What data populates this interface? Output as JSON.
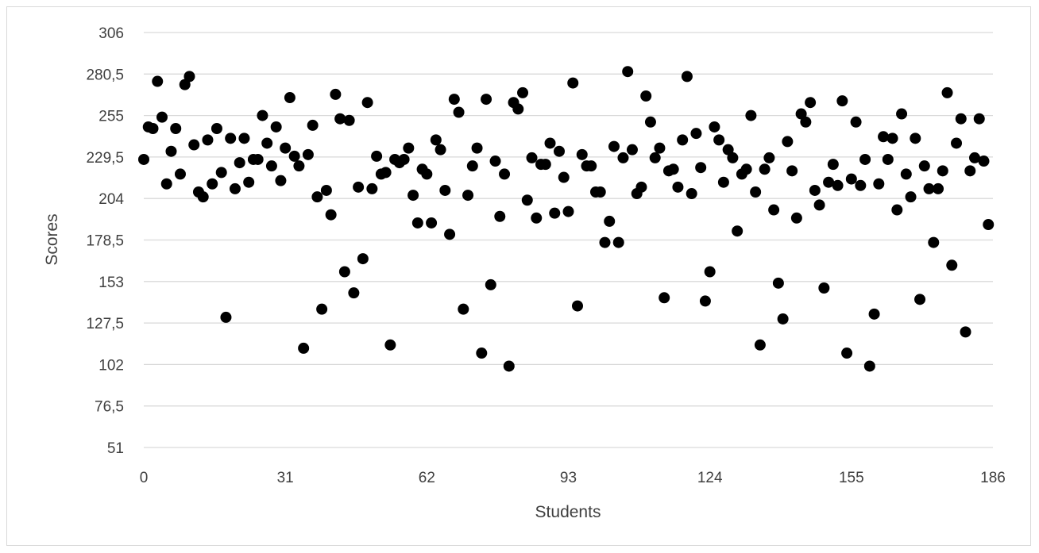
{
  "chart_data": {
    "type": "scatter",
    "title": "",
    "xlabel": "Students",
    "ylabel": "Scores",
    "xlim": [
      0,
      186
    ],
    "ylim": [
      51,
      306
    ],
    "xticks": [
      0,
      31,
      62,
      93,
      124,
      155,
      186
    ],
    "xtick_labels": [
      "0",
      "31",
      "62",
      "93",
      "124",
      "155",
      "186"
    ],
    "yticks": [
      51,
      76.5,
      102,
      127.5,
      153,
      178.5,
      204,
      229.5,
      255,
      280.5,
      306
    ],
    "ytick_labels": [
      "51",
      "76,5",
      "102",
      "127,5",
      "153",
      "178,5",
      "204",
      "229,5",
      "255",
      "280,5",
      "306"
    ],
    "grid": true,
    "legend": "none",
    "marker_color": "#000000",
    "gridline_color": "#d9d9d9",
    "series": [
      {
        "points": [
          [
            0,
            228
          ],
          [
            1,
            248
          ],
          [
            2,
            247
          ],
          [
            3,
            276
          ],
          [
            4,
            254
          ],
          [
            5,
            213
          ],
          [
            6,
            233
          ],
          [
            7,
            247
          ],
          [
            8,
            219
          ],
          [
            9,
            274
          ],
          [
            10,
            279
          ],
          [
            11,
            237
          ],
          [
            12,
            208
          ],
          [
            13,
            205
          ],
          [
            14,
            240
          ],
          [
            15,
            213
          ],
          [
            16,
            247
          ],
          [
            17,
            220
          ],
          [
            18,
            131
          ],
          [
            19,
            241
          ],
          [
            20,
            210
          ],
          [
            21,
            226
          ],
          [
            22,
            241
          ],
          [
            23,
            214
          ],
          [
            24,
            228
          ],
          [
            25,
            228
          ],
          [
            26,
            255
          ],
          [
            27,
            238
          ],
          [
            28,
            224
          ],
          [
            29,
            248
          ],
          [
            30,
            215
          ],
          [
            31,
            235
          ],
          [
            32,
            266
          ],
          [
            33,
            230
          ],
          [
            34,
            224
          ],
          [
            35,
            112
          ],
          [
            36,
            231
          ],
          [
            37,
            249
          ],
          [
            38,
            205
          ],
          [
            39,
            136
          ],
          [
            40,
            209
          ],
          [
            41,
            194
          ],
          [
            42,
            268
          ],
          [
            43,
            253
          ],
          [
            44,
            159
          ],
          [
            45,
            252
          ],
          [
            46,
            146
          ],
          [
            47,
            211
          ],
          [
            48,
            167
          ],
          [
            49,
            263
          ],
          [
            50,
            210
          ],
          [
            51,
            230
          ],
          [
            52,
            219
          ],
          [
            53,
            220
          ],
          [
            54,
            114
          ],
          [
            55,
            228
          ],
          [
            56,
            226
          ],
          [
            57,
            228
          ],
          [
            58,
            235
          ],
          [
            59,
            206
          ],
          [
            60,
            189
          ],
          [
            61,
            222
          ],
          [
            62,
            219
          ],
          [
            63,
            189
          ],
          [
            64,
            240
          ],
          [
            65,
            234
          ],
          [
            66,
            209
          ],
          [
            67,
            182
          ],
          [
            68,
            265
          ],
          [
            69,
            257
          ],
          [
            70,
            136
          ],
          [
            71,
            206
          ],
          [
            72,
            224
          ],
          [
            73,
            235
          ],
          [
            74,
            109
          ],
          [
            75,
            265
          ],
          [
            76,
            151
          ],
          [
            77,
            227
          ],
          [
            78,
            193
          ],
          [
            79,
            219
          ],
          [
            80,
            101
          ],
          [
            81,
            263
          ],
          [
            82,
            259
          ],
          [
            83,
            269
          ],
          [
            84,
            203
          ],
          [
            85,
            229
          ],
          [
            86,
            192
          ],
          [
            87,
            225
          ],
          [
            88,
            225
          ],
          [
            89,
            238
          ],
          [
            90,
            195
          ],
          [
            91,
            233
          ],
          [
            92,
            217
          ],
          [
            93,
            196
          ],
          [
            94,
            275
          ],
          [
            95,
            138
          ],
          [
            96,
            231
          ],
          [
            97,
            224
          ],
          [
            98,
            224
          ],
          [
            99,
            208
          ],
          [
            100,
            208
          ],
          [
            101,
            177
          ],
          [
            102,
            190
          ],
          [
            103,
            236
          ],
          [
            104,
            177
          ],
          [
            105,
            229
          ],
          [
            106,
            282
          ],
          [
            107,
            234
          ],
          [
            108,
            207
          ],
          [
            109,
            211
          ],
          [
            110,
            267
          ],
          [
            111,
            251
          ],
          [
            112,
            229
          ],
          [
            113,
            235
          ],
          [
            114,
            143
          ],
          [
            115,
            221
          ],
          [
            116,
            222
          ],
          [
            117,
            211
          ],
          [
            118,
            240
          ],
          [
            119,
            279
          ],
          [
            120,
            207
          ],
          [
            121,
            244
          ],
          [
            122,
            223
          ],
          [
            123,
            141
          ],
          [
            124,
            159
          ],
          [
            125,
            248
          ],
          [
            126,
            240
          ],
          [
            127,
            214
          ],
          [
            128,
            234
          ],
          [
            129,
            229
          ],
          [
            130,
            184
          ],
          [
            131,
            219
          ],
          [
            132,
            222
          ],
          [
            133,
            255
          ],
          [
            134,
            208
          ],
          [
            135,
            114
          ],
          [
            136,
            222
          ],
          [
            137,
            229
          ],
          [
            138,
            197
          ],
          [
            139,
            152
          ],
          [
            140,
            130
          ],
          [
            141,
            239
          ],
          [
            142,
            221
          ],
          [
            143,
            192
          ],
          [
            144,
            256
          ],
          [
            145,
            251
          ],
          [
            146,
            263
          ],
          [
            147,
            209
          ],
          [
            148,
            200
          ],
          [
            149,
            149
          ],
          [
            150,
            214
          ],
          [
            151,
            225
          ],
          [
            152,
            212
          ],
          [
            153,
            264
          ],
          [
            154,
            109
          ],
          [
            155,
            216
          ],
          [
            156,
            251
          ],
          [
            157,
            212
          ],
          [
            158,
            228
          ],
          [
            159,
            101
          ],
          [
            160,
            133
          ],
          [
            161,
            213
          ],
          [
            162,
            242
          ],
          [
            163,
            228
          ],
          [
            164,
            241
          ],
          [
            165,
            197
          ],
          [
            166,
            256
          ],
          [
            167,
            219
          ],
          [
            168,
            205
          ],
          [
            169,
            241
          ],
          [
            170,
            142
          ],
          [
            171,
            224
          ],
          [
            172,
            210
          ],
          [
            173,
            177
          ],
          [
            174,
            210
          ],
          [
            175,
            221
          ],
          [
            176,
            269
          ],
          [
            177,
            163
          ],
          [
            178,
            238
          ],
          [
            179,
            253
          ],
          [
            180,
            122
          ],
          [
            181,
            221
          ],
          [
            182,
            229
          ],
          [
            183,
            253
          ],
          [
            184,
            227
          ],
          [
            185,
            188
          ]
        ]
      }
    ]
  }
}
